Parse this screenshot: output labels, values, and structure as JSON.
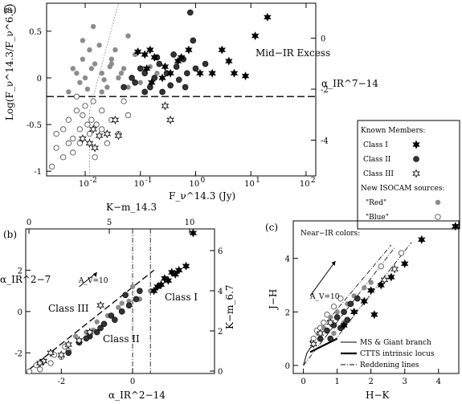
{
  "chart_data": [
    {
      "type": "scatter",
      "panel_label": "(a)",
      "xlabel": "F_ν^14.3 (Jy)",
      "ylabel": "Log(F_ν^14.3/F_ν^6.7)",
      "right_axis_label": "α_IR^7−14",
      "x_scale": "log",
      "xlim": [
        0.002,
        150
      ],
      "ylim": [
        -1.05,
        0.8
      ],
      "x_ticks": [
        "10^-2",
        "10^-1",
        "10^0",
        "10^1",
        "10^2"
      ],
      "y_ticks": [
        "-1",
        "-0.5",
        "0",
        "0.5"
      ],
      "right_ticks": [
        "-4",
        "-2",
        "0"
      ],
      "annotation": "Mid−IR Excess",
      "dashed_line_y": -0.2,
      "legend": {
        "title_known": "Known Members:",
        "class1": "Class I",
        "class2": "Class II",
        "class3": "Class III",
        "title_new": "New ISOCAM sources:",
        "red": "\"Red\"",
        "blue": "\"Blue\""
      },
      "series": [
        {
          "name": "Class I",
          "x": [
            0.09,
            0.12,
            0.13,
            0.15,
            0.18,
            0.28,
            0.35,
            0.48,
            0.55,
            0.75,
            1.2,
            2.0,
            3.0,
            4.0,
            5.0,
            8.0,
            12.0,
            20.0,
            0.16,
            0.25
          ],
          "y": [
            0.28,
            0.25,
            0.1,
            0.3,
            0.22,
            0.12,
            0.05,
            0.18,
            0.22,
            0.3,
            0.05,
            0.05,
            0.3,
            0.18,
            0.05,
            0.02,
            0.45,
            0.65,
            -0.05,
            0.0
          ]
        },
        {
          "name": "Class II",
          "x": [
            0.05,
            0.07,
            0.08,
            0.1,
            0.12,
            0.15,
            0.18,
            0.22,
            0.3,
            0.35,
            0.45,
            0.5,
            0.6,
            0.7,
            0.8,
            1.0,
            1.5,
            0.25,
            0.4,
            0.65,
            0.9,
            0.12,
            0.2
          ],
          "y": [
            -0.1,
            0.0,
            -0.05,
            0.1,
            -0.15,
            -0.1,
            0.0,
            0.15,
            0.05,
            -0.08,
            0.12,
            -0.02,
            0.2,
            0.05,
            0.7,
            0.1,
            0.15,
            -0.15,
            0.25,
            -0.1,
            0.4,
            0.05,
            0.22
          ]
        },
        {
          "name": "Class III",
          "x": [
            0.009,
            0.012,
            0.014,
            0.018,
            0.025,
            0.035,
            0.28,
            0.35,
            0.015,
            0.04
          ],
          "y": [
            -0.65,
            -0.7,
            -0.55,
            -0.62,
            -0.6,
            -0.45,
            -0.3,
            -0.45,
            -0.75,
            -0.62
          ]
        },
        {
          "name": "\"Red\"",
          "x": [
            0.005,
            0.006,
            0.008,
            0.01,
            0.012,
            0.015,
            0.02,
            0.025,
            0.03,
            0.04,
            0.05,
            0.06,
            0.08,
            0.1,
            0.15,
            0.2,
            0.007,
            0.009,
            0.011,
            0.013,
            0.018,
            0.022,
            0.028,
            0.035,
            0.045,
            0.06,
            0.009,
            0.014,
            0.02,
            0.03
          ],
          "y": [
            -0.15,
            0.1,
            -0.05,
            0.0,
            0.3,
            0.15,
            0.05,
            -0.1,
            0.2,
            0.0,
            0.1,
            0.45,
            0.25,
            -0.05,
            0.12,
            0.05,
            0.05,
            0.2,
            -0.12,
            0.1,
            0.35,
            -0.02,
            0.12,
            0.3,
            0.05,
            -0.1,
            0.4,
            0.55,
            -0.15,
            0.15
          ]
        },
        {
          "name": "\"Blue\"",
          "x": [
            0.0025,
            0.003,
            0.004,
            0.005,
            0.006,
            0.007,
            0.008,
            0.009,
            0.01,
            0.012,
            0.014,
            0.016,
            0.02,
            0.025,
            0.03,
            0.04,
            0.05,
            0.06,
            0.004,
            0.006,
            0.008,
            0.011,
            0.015,
            0.02,
            0.003,
            0.005,
            0.007,
            0.013
          ],
          "y": [
            -0.95,
            -0.75,
            -0.55,
            -0.45,
            -0.65,
            -0.35,
            -0.55,
            -0.4,
            -0.3,
            -0.6,
            -0.25,
            -0.5,
            -0.35,
            -0.7,
            -0.45,
            -0.6,
            -0.25,
            -0.4,
            -0.85,
            -0.8,
            -0.7,
            -0.5,
            -0.85,
            -0.55,
            -0.6,
            -0.7,
            -0.2,
            -0.45
          ]
        }
      ]
    },
    {
      "type": "scatter",
      "panel_label": "(b)",
      "xlabel": "α_IR^2−14",
      "ylabel": "α_IR^2−7",
      "top_axis_label": "K−m_14.3",
      "right_axis_label": "K−m_6.7",
      "xlim": [
        -3,
        2.3
      ],
      "ylim": [
        -3,
        4
      ],
      "x_ticks": [
        "-2",
        "0"
      ],
      "y_ticks": [
        "-2",
        "0",
        "2"
      ],
      "top_ticks": [
        "0",
        "5",
        "10"
      ],
      "right_ticks": [
        "0",
        "2",
        "4",
        "6"
      ],
      "annotations": [
        "A_V=10",
        "Class III",
        "Class II",
        "Class I"
      ],
      "vertical_lines_x": [
        0,
        0.5
      ],
      "series": [
        {
          "name": "Class I",
          "x": [
            0.6,
            0.8,
            1.0,
            1.2,
            1.3,
            1.5,
            1.7,
            0.7,
            0.9,
            1.1
          ],
          "y": [
            1.0,
            1.3,
            1.5,
            1.8,
            2.0,
            2.2,
            3.8,
            1.2,
            1.6,
            1.9
          ]
        },
        {
          "name": "Class II",
          "x": [
            -1.8,
            -1.5,
            -1.2,
            -1.0,
            -0.8,
            -0.5,
            -0.3,
            -0.1,
            0.1,
            -0.6,
            -0.9,
            -1.3,
            0.2,
            -0.2
          ],
          "y": [
            -2.0,
            -1.5,
            -1.2,
            -1.0,
            -0.6,
            -0.4,
            0.0,
            0.3,
            0.6,
            -0.2,
            -0.8,
            -1.3,
            1.0,
            0.8
          ]
        },
        {
          "name": "Class III",
          "x": [
            -2.5,
            -2.3,
            -2.0,
            -1.8,
            -1.5,
            -1.2,
            -0.9,
            -2.6
          ],
          "y": [
            -2.4,
            -2.0,
            -2.1,
            -1.6,
            -1.4,
            -1.0,
            0.3,
            -2.5
          ]
        },
        {
          "name": "\"Red\"",
          "x": [
            -1.6,
            -1.3,
            -1.0,
            -0.7,
            -0.4,
            -0.1,
            0.2,
            0.5,
            -0.8,
            -1.1,
            0.0,
            -0.3
          ],
          "y": [
            -1.2,
            -1.0,
            -0.5,
            -0.2,
            0.2,
            0.5,
            0.6,
            1.0,
            -0.6,
            -0.9,
            1.2,
            0.4
          ]
        },
        {
          "name": "\"Blue\"",
          "x": [
            -2.9,
            -2.7,
            -2.5,
            -2.2,
            -2.0,
            -1.8,
            -2.6,
            -2.3,
            -1.9
          ],
          "y": [
            -2.9,
            -2.6,
            -2.4,
            -2.1,
            -2.2,
            -1.9,
            -2.8,
            -2.5,
            -1.7
          ]
        }
      ]
    },
    {
      "type": "scatter",
      "panel_label": "(c)",
      "xlabel": "H−K",
      "ylabel": "J−H",
      "title": "Near−IR colors:",
      "xlim": [
        -0.3,
        4.6
      ],
      "ylim": [
        -0.3,
        5.4
      ],
      "x_ticks": [
        "0",
        "1",
        "2",
        "3",
        "4"
      ],
      "y_ticks": [
        "0",
        "2",
        "4"
      ],
      "annotations": [
        "A_V=10"
      ],
      "legend": {
        "ms_giant": "MS & Giant branch",
        "ctts": "CTTS intrinsic locus",
        "reddening": "Reddening lines"
      },
      "series": [
        {
          "name": "Class I",
          "x": [
            1.5,
            1.8,
            2.0,
            2.3,
            2.6,
            3.0,
            3.5,
            4.5,
            1.2,
            2.1
          ],
          "y": [
            2.0,
            2.4,
            2.8,
            3.0,
            3.3,
            3.8,
            4.7,
            5.2,
            1.5,
            1.9
          ]
        },
        {
          "name": "Class II",
          "x": [
            0.5,
            0.7,
            0.9,
            1.0,
            1.2,
            1.4,
            1.6,
            0.8,
            1.1,
            1.3
          ],
          "y": [
            1.0,
            1.3,
            1.5,
            1.8,
            2.0,
            2.3,
            2.5,
            1.0,
            1.4,
            1.7
          ]
        },
        {
          "name": "Class III",
          "x": [
            0.3,
            0.5,
            0.8,
            2.4,
            2.7
          ],
          "y": [
            0.8,
            1.2,
            1.6,
            3.2,
            3.6
          ]
        },
        {
          "name": "\"Red\"",
          "x": [
            0.6,
            0.8,
            1.0,
            1.3,
            1.5,
            1.8,
            2.0,
            0.9,
            1.2
          ],
          "y": [
            1.4,
            1.8,
            2.0,
            2.3,
            2.6,
            2.9,
            3.1,
            1.2,
            1.6
          ]
        },
        {
          "name": "\"Blue\"",
          "x": [
            0.3,
            0.4,
            0.6,
            0.7,
            0.9,
            1.1,
            2.3,
            2.9,
            0.5
          ],
          "y": [
            1.0,
            1.3,
            1.6,
            1.9,
            2.2,
            2.5,
            3.7,
            4.2,
            1.4
          ]
        }
      ]
    }
  ]
}
